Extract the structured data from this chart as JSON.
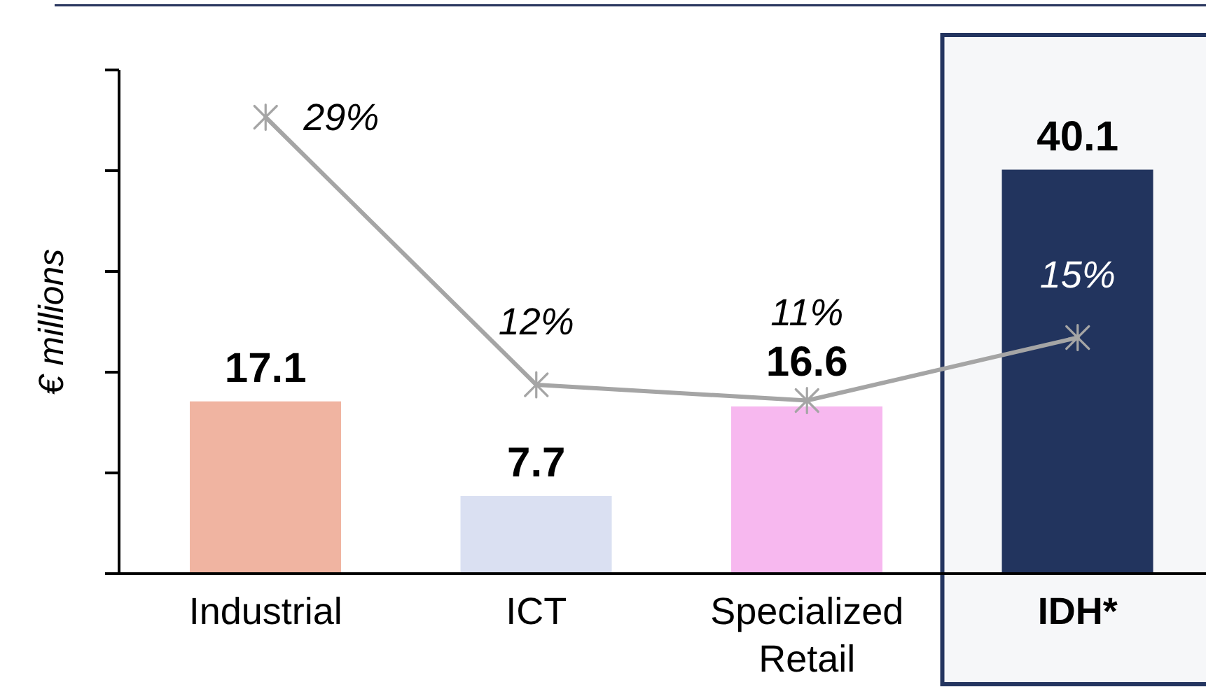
{
  "chart_data": {
    "type": "bar",
    "ylabel": "€ millions",
    "categories": [
      "Industrial",
      "ICT",
      "Specialized Retail",
      "IDH*"
    ],
    "series": [
      {
        "colors": [
          "#f0b4a1",
          "#dae0f2",
          "#f7b8ef",
          "#22345e"
        ],
        "values": [
          17.1,
          7.7,
          16.6,
          40.1
        ],
        "value_labels": [
          "17.1",
          "7.7",
          "16.6",
          "40.1"
        ]
      },
      {
        "type": "line",
        "axis": "y2",
        "color": "#a5a5a5",
        "values": [
          29,
          12,
          11,
          15
        ],
        "value_labels": [
          "29%",
          "12%",
          "11%",
          "15%"
        ]
      }
    ],
    "ylim": [
      0,
      50
    ],
    "yticks": [
      {
        "value": 0,
        "label": null
      },
      {
        "value": 10,
        "label": null
      },
      {
        "value": 20,
        "label": null
      },
      {
        "value": 30,
        "label": null
      },
      {
        "value": 40,
        "label": null
      },
      {
        "value": 50,
        "label": null
      }
    ],
    "bands": [
      {
        "axis": "x",
        "from": "IDH*",
        "to": "IDH*",
        "color": "#243560"
      }
    ],
    "tick_labels": "x",
    "marker": "cross"
  }
}
